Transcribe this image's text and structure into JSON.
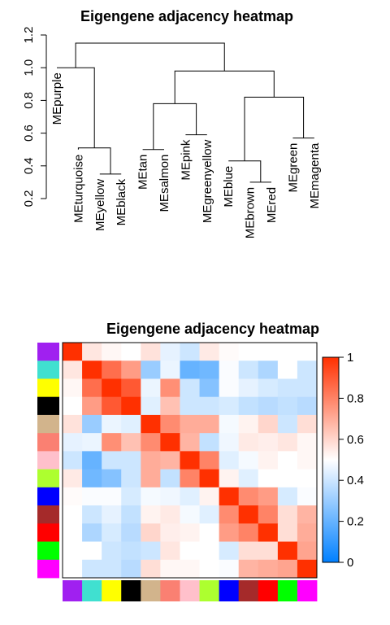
{
  "chart_data": [
    {
      "type": "dendrogram",
      "title": "Eigengene adjacency heatmap",
      "ylabel": "",
      "ylim": [
        0.2,
        1.2
      ],
      "yticks": [
        "0.2",
        "0.4",
        "0.6",
        "0.8",
        "1.0",
        "1.2"
      ],
      "leaves": [
        "MEpurple",
        "MEturquoise",
        "MEyellow",
        "MEblack",
        "MEtan",
        "MEsalmon",
        "MEpink",
        "MEgreenyellow",
        "MEblue",
        "MEbrown",
        "MEred",
        "MEgreen",
        "MEmagenta"
      ],
      "leaf_heights": [
        1.0,
        0.5,
        0.35,
        0.35,
        0.5,
        0.5,
        0.59,
        0.59,
        0.43,
        0.3,
        0.3,
        0.57,
        0.57
      ],
      "merges": [
        {
          "a": 2,
          "b": 3,
          "height": 0.35
        },
        {
          "a": 9,
          "b": 10,
          "height": 0.3
        },
        {
          "a": 4,
          "b": 5,
          "height": 0.5
        },
        {
          "a": 11,
          "b": 12,
          "height": 0.57
        },
        {
          "a": 6,
          "b": 7,
          "height": 0.59
        },
        {
          "a": 1,
          "b": "m0",
          "height": 0.51
        },
        {
          "a": 8,
          "b": "m1",
          "height": 0.43
        },
        {
          "a": "m2",
          "b": "m4",
          "height": 0.78
        },
        {
          "a": "m6",
          "b": "m3",
          "height": 0.82
        },
        {
          "a": 0,
          "b": "m5",
          "height": 1.0
        },
        {
          "a": "m7",
          "b": "m8",
          "height": 0.98
        },
        {
          "a": "m9",
          "b": "m10",
          "height": 1.15
        }
      ]
    },
    {
      "type": "heatmap",
      "title": "Eigengene adjacency heatmap",
      "order": [
        "purple",
        "turquoise",
        "yellow",
        "black",
        "tan",
        "salmon",
        "pink",
        "greenyellow",
        "blue",
        "brown",
        "red",
        "green",
        "magenta"
      ],
      "module_colors": [
        "#A020F0",
        "#40E0D0",
        "#FFFF00",
        "#000000",
        "#D2B48C",
        "#FA8072",
        "#FFC0CB",
        "#ADFF2F",
        "#0000FF",
        "#A52A2A",
        "#FF0000",
        "#00FF00",
        "#FF00FF"
      ],
      "matrix": [
        [
          1.0,
          0.56,
          0.52,
          0.5,
          0.57,
          0.45,
          0.4,
          0.55,
          0.51,
          0.5,
          0.5,
          0.5,
          0.5
        ],
        [
          0.56,
          1.0,
          0.85,
          0.74,
          0.3,
          0.46,
          0.2,
          0.22,
          0.49,
          0.4,
          0.34,
          0.5,
          0.4
        ],
        [
          0.52,
          0.85,
          1.0,
          0.9,
          0.46,
          0.77,
          0.4,
          0.26,
          0.49,
          0.45,
          0.42,
          0.4,
          0.4
        ],
        [
          0.5,
          0.74,
          0.9,
          1.0,
          0.44,
          0.65,
          0.4,
          0.4,
          0.42,
          0.38,
          0.36,
          0.38,
          0.36
        ],
        [
          0.57,
          0.3,
          0.46,
          0.44,
          1.0,
          0.78,
          0.7,
          0.7,
          0.48,
          0.53,
          0.6,
          0.4,
          0.58
        ],
        [
          0.45,
          0.46,
          0.77,
          0.65,
          0.78,
          1.0,
          0.68,
          0.38,
          0.47,
          0.55,
          0.54,
          0.56,
          0.52
        ],
        [
          0.4,
          0.2,
          0.4,
          0.4,
          0.7,
          0.68,
          1.0,
          0.8,
          0.44,
          0.48,
          0.53,
          0.5,
          0.52
        ],
        [
          0.55,
          0.22,
          0.26,
          0.4,
          0.7,
          0.38,
          0.8,
          1.0,
          0.53,
          0.44,
          0.5,
          0.5,
          0.5
        ],
        [
          0.51,
          0.49,
          0.49,
          0.42,
          0.48,
          0.47,
          0.44,
          0.53,
          1.0,
          0.78,
          0.74,
          0.42,
          0.49
        ],
        [
          0.5,
          0.4,
          0.45,
          0.38,
          0.53,
          0.55,
          0.48,
          0.44,
          0.78,
          1.0,
          0.8,
          0.58,
          0.68
        ],
        [
          0.5,
          0.34,
          0.42,
          0.36,
          0.6,
          0.54,
          0.53,
          0.5,
          0.74,
          0.8,
          1.0,
          0.58,
          0.7
        ],
        [
          0.5,
          0.5,
          0.4,
          0.38,
          0.4,
          0.56,
          0.5,
          0.5,
          0.42,
          0.58,
          0.58,
          1.0,
          0.72
        ],
        [
          0.5,
          0.4,
          0.4,
          0.36,
          0.58,
          0.52,
          0.52,
          0.5,
          0.49,
          0.68,
          0.7,
          0.72,
          1.0
        ]
      ],
      "legend": {
        "range": [
          0,
          1
        ],
        "ticks": [
          "0",
          "0.2",
          "0.4",
          "0.6",
          "0.8",
          "1"
        ],
        "colors": {
          "low": "#0080FF",
          "mid": "#FFFFFF",
          "high": "#FF3000"
        }
      },
      "grid": false
    }
  ]
}
